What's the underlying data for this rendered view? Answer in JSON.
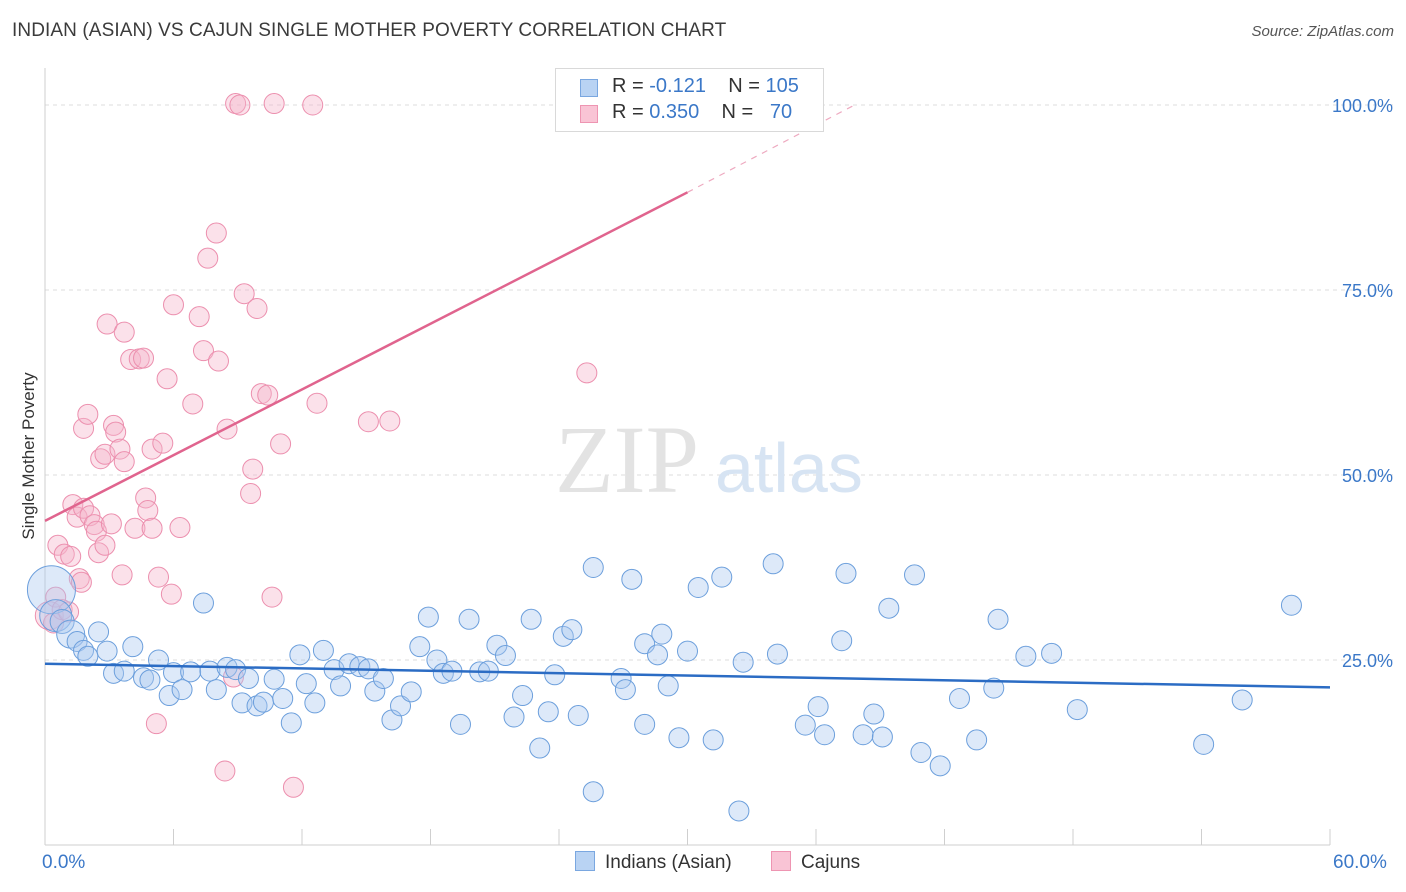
{
  "title": "INDIAN (ASIAN) VS CAJUN SINGLE MOTHER POVERTY CORRELATION CHART",
  "source": "Source: ZipAtlas.com",
  "watermark": {
    "zip": "ZIP",
    "atlas": "atlas"
  },
  "legend_stats": [
    {
      "r_label": "R =",
      "r_value": "-0.121",
      "n_label": "N =",
      "n_value": "105",
      "fill": "#b9d3f3",
      "stroke": "#7aa7e0"
    },
    {
      "r_label": "R =",
      "r_value": "0.350",
      "n_label": "N =",
      "n_value": "70",
      "fill": "#f9c4d5",
      "stroke": "#ee95b2"
    }
  ],
  "bottom_legend": [
    {
      "label": "Indians (Asian)",
      "fill": "#b9d3f3",
      "stroke": "#7aa7e0"
    },
    {
      "label": "Cajuns",
      "fill": "#f9c4d5",
      "stroke": "#ee95b2"
    }
  ],
  "x_edge_labels": {
    "left": "0.0%",
    "right": "60.0%"
  },
  "colors": {
    "blue": "#6c9fdc",
    "blue_line": "#2b6cc4",
    "pink": "#ec8fae",
    "pink_line": "#e0648e",
    "tick_label": "#3b78c8",
    "grid": "#dcdcdc"
  },
  "chart_data": {
    "type": "scatter",
    "xlabel": "",
    "ylabel": "Single Mother Poverty",
    "xlim": [
      0,
      60
    ],
    "ylim": [
      0,
      105
    ],
    "y_ticks": [
      {
        "value": 25,
        "label": "25.0%"
      },
      {
        "value": 50,
        "label": "50.0%"
      },
      {
        "value": 75,
        "label": "75.0%"
      },
      {
        "value": 100,
        "label": "100.0%"
      }
    ],
    "x_ticks": [
      0,
      6,
      12,
      18,
      24,
      30,
      36,
      42,
      48,
      54,
      60
    ],
    "grid": true,
    "series": [
      {
        "name": "Indians (Asian)",
        "color": "#6c9fdc",
        "trend": {
          "x": [
            0,
            60
          ],
          "y": [
            24.5,
            21.3
          ],
          "dashed_from": null
        },
        "points": [
          [
            0.3,
            34.5,
            24
          ],
          [
            0.5,
            31,
            16
          ],
          [
            0.8,
            30.2,
            12
          ],
          [
            1.2,
            28.5,
            14
          ],
          [
            1.5,
            27.5,
            10
          ],
          [
            1.8,
            26.3,
            10
          ],
          [
            2.0,
            25.5,
            10
          ],
          [
            2.5,
            28.8,
            10
          ],
          [
            2.9,
            26.2,
            10
          ],
          [
            3.2,
            23.2,
            10
          ],
          [
            3.7,
            23.5,
            10
          ],
          [
            4.1,
            26.8,
            10
          ],
          [
            4.6,
            22.6,
            10
          ],
          [
            4.9,
            22.3,
            10
          ],
          [
            5.3,
            25.0,
            10
          ],
          [
            5.8,
            20.2,
            10
          ],
          [
            6.0,
            23.3,
            10
          ],
          [
            6.4,
            21.0,
            10
          ],
          [
            6.8,
            23.4,
            10
          ],
          [
            7.4,
            32.7,
            10
          ],
          [
            7.7,
            23.5,
            10
          ],
          [
            8.0,
            21.0,
            10
          ],
          [
            8.5,
            24.0,
            10
          ],
          [
            8.9,
            23.7,
            10
          ],
          [
            9.2,
            19.2,
            10
          ],
          [
            9.5,
            22.5,
            10
          ],
          [
            9.9,
            18.8,
            10
          ],
          [
            10.2,
            19.3,
            10
          ],
          [
            10.7,
            22.4,
            10
          ],
          [
            11.1,
            19.8,
            10
          ],
          [
            11.5,
            16.5,
            10
          ],
          [
            11.9,
            25.7,
            10
          ],
          [
            12.2,
            21.8,
            10
          ],
          [
            12.6,
            19.2,
            10
          ],
          [
            13.0,
            26.3,
            10
          ],
          [
            13.5,
            23.7,
            10
          ],
          [
            13.8,
            21.5,
            10
          ],
          [
            14.2,
            24.5,
            10
          ],
          [
            14.7,
            24.1,
            10
          ],
          [
            15.1,
            23.8,
            10
          ],
          [
            15.4,
            20.8,
            10
          ],
          [
            15.8,
            22.5,
            10
          ],
          [
            16.2,
            16.9,
            10
          ],
          [
            16.6,
            18.8,
            10
          ],
          [
            17.1,
            20.7,
            10
          ],
          [
            17.5,
            26.8,
            10
          ],
          [
            17.9,
            30.8,
            10
          ],
          [
            18.3,
            25.0,
            10
          ],
          [
            18.6,
            23.2,
            10
          ],
          [
            19.0,
            23.5,
            10
          ],
          [
            19.4,
            16.3,
            10
          ],
          [
            19.8,
            30.5,
            10
          ],
          [
            20.3,
            23.4,
            10
          ],
          [
            20.7,
            23.5,
            10
          ],
          [
            21.1,
            27.0,
            10
          ],
          [
            21.5,
            25.6,
            10
          ],
          [
            21.9,
            17.3,
            10
          ],
          [
            22.3,
            20.2,
            10
          ],
          [
            22.7,
            30.5,
            10
          ],
          [
            23.1,
            13.1,
            10
          ],
          [
            23.5,
            18.0,
            10
          ],
          [
            23.8,
            23.0,
            10
          ],
          [
            24.2,
            28.2,
            10
          ],
          [
            24.6,
            29.1,
            10
          ],
          [
            24.9,
            17.5,
            10
          ],
          [
            25.6,
            37.5,
            10
          ],
          [
            25.6,
            7.2,
            10
          ],
          [
            26.9,
            22.5,
            10
          ],
          [
            27.1,
            21.0,
            10
          ],
          [
            27.4,
            35.9,
            10
          ],
          [
            28.0,
            16.3,
            10
          ],
          [
            28.0,
            27.2,
            10
          ],
          [
            28.6,
            25.7,
            10
          ],
          [
            28.8,
            28.5,
            10
          ],
          [
            29.1,
            21.5,
            10
          ],
          [
            29.6,
            14.5,
            10
          ],
          [
            30.0,
            26.2,
            10
          ],
          [
            30.5,
            34.8,
            10
          ],
          [
            31.2,
            14.2,
            10
          ],
          [
            31.6,
            36.2,
            10
          ],
          [
            32.4,
            4.6,
            10
          ],
          [
            32.6,
            24.7,
            10
          ],
          [
            34.0,
            38.0,
            10
          ],
          [
            34.2,
            25.8,
            10
          ],
          [
            35.5,
            16.2,
            10
          ],
          [
            36.1,
            18.7,
            10
          ],
          [
            36.4,
            14.9,
            10
          ],
          [
            37.2,
            27.6,
            10
          ],
          [
            37.4,
            36.7,
            10
          ],
          [
            38.2,
            14.9,
            10
          ],
          [
            38.7,
            17.7,
            10
          ],
          [
            39.1,
            14.6,
            10
          ],
          [
            39.4,
            32.0,
            10
          ],
          [
            40.6,
            36.5,
            10
          ],
          [
            40.9,
            12.5,
            10
          ],
          [
            41.8,
            10.7,
            10
          ],
          [
            42.7,
            19.8,
            10
          ],
          [
            43.5,
            14.2,
            10
          ],
          [
            44.3,
            21.2,
            10
          ],
          [
            44.5,
            30.5,
            10
          ],
          [
            45.8,
            25.5,
            10
          ],
          [
            47.0,
            25.9,
            10
          ],
          [
            48.2,
            18.3,
            10
          ],
          [
            54.1,
            13.6,
            10
          ],
          [
            55.9,
            19.6,
            10
          ],
          [
            58.2,
            32.4,
            10
          ]
        ]
      },
      {
        "name": "Cajuns",
        "color": "#ec8fae",
        "trend": {
          "x": [
            0,
            30
          ],
          "y": [
            43.8,
            88.2
          ],
          "dashed_from": 30,
          "dashed_to": [
            37.8,
            100
          ]
        },
        "points": [
          [
            0.2,
            31.0,
            14
          ],
          [
            0.4,
            30.0,
            10
          ],
          [
            0.5,
            33.5,
            10
          ],
          [
            0.6,
            40.5,
            10
          ],
          [
            0.8,
            31.8,
            10
          ],
          [
            0.9,
            39.3,
            10
          ],
          [
            1.1,
            31.5,
            10
          ],
          [
            1.2,
            39.0,
            10
          ],
          [
            1.3,
            46.0,
            10
          ],
          [
            1.5,
            44.3,
            10
          ],
          [
            1.6,
            36.0,
            10
          ],
          [
            1.7,
            35.5,
            10
          ],
          [
            1.8,
            45.5,
            10
          ],
          [
            1.8,
            56.3,
            10
          ],
          [
            2.0,
            58.2,
            10
          ],
          [
            2.1,
            44.5,
            10
          ],
          [
            2.3,
            43.3,
            10
          ],
          [
            2.4,
            42.4,
            10
          ],
          [
            2.5,
            39.5,
            10
          ],
          [
            2.6,
            52.2,
            10
          ],
          [
            2.8,
            40.5,
            10
          ],
          [
            2.8,
            52.8,
            10
          ],
          [
            2.9,
            70.4,
            10
          ],
          [
            3.1,
            43.4,
            10
          ],
          [
            3.2,
            56.7,
            10
          ],
          [
            3.3,
            55.8,
            10
          ],
          [
            3.5,
            53.5,
            10
          ],
          [
            3.6,
            36.5,
            10
          ],
          [
            3.7,
            51.8,
            10
          ],
          [
            3.7,
            69.3,
            10
          ],
          [
            4.0,
            65.6,
            10
          ],
          [
            4.2,
            42.8,
            10
          ],
          [
            4.4,
            65.7,
            10
          ],
          [
            4.6,
            65.8,
            10
          ],
          [
            4.7,
            46.9,
            10
          ],
          [
            4.8,
            45.2,
            10
          ],
          [
            5.0,
            53.5,
            10
          ],
          [
            5.0,
            42.8,
            10
          ],
          [
            5.2,
            16.4,
            10
          ],
          [
            5.3,
            36.2,
            10
          ],
          [
            5.5,
            54.3,
            10
          ],
          [
            5.7,
            63.0,
            10
          ],
          [
            5.9,
            33.9,
            10
          ],
          [
            6.0,
            73.0,
            10
          ],
          [
            6.3,
            42.9,
            10
          ],
          [
            6.9,
            59.6,
            10
          ],
          [
            7.2,
            71.4,
            10
          ],
          [
            7.4,
            66.8,
            10
          ],
          [
            7.6,
            79.3,
            10
          ],
          [
            8.0,
            82.7,
            10
          ],
          [
            8.1,
            65.4,
            10
          ],
          [
            8.4,
            10.0,
            10
          ],
          [
            8.5,
            56.2,
            10
          ],
          [
            8.8,
            22.7,
            10
          ],
          [
            8.9,
            100.2,
            10
          ],
          [
            9.1,
            100.0,
            10
          ],
          [
            9.3,
            74.5,
            10
          ],
          [
            9.6,
            47.5,
            10
          ],
          [
            9.7,
            50.8,
            10
          ],
          [
            9.9,
            72.5,
            10
          ],
          [
            10.1,
            61.0,
            10
          ],
          [
            10.4,
            60.8,
            10
          ],
          [
            10.6,
            33.5,
            10
          ],
          [
            10.7,
            100.2,
            10
          ],
          [
            11.0,
            54.2,
            10
          ],
          [
            11.6,
            7.8,
            10
          ],
          [
            12.5,
            100.0,
            10
          ],
          [
            12.7,
            59.7,
            10
          ],
          [
            15.1,
            57.2,
            10
          ],
          [
            16.1,
            57.3,
            10
          ],
          [
            25.3,
            63.8,
            10
          ]
        ]
      }
    ]
  }
}
